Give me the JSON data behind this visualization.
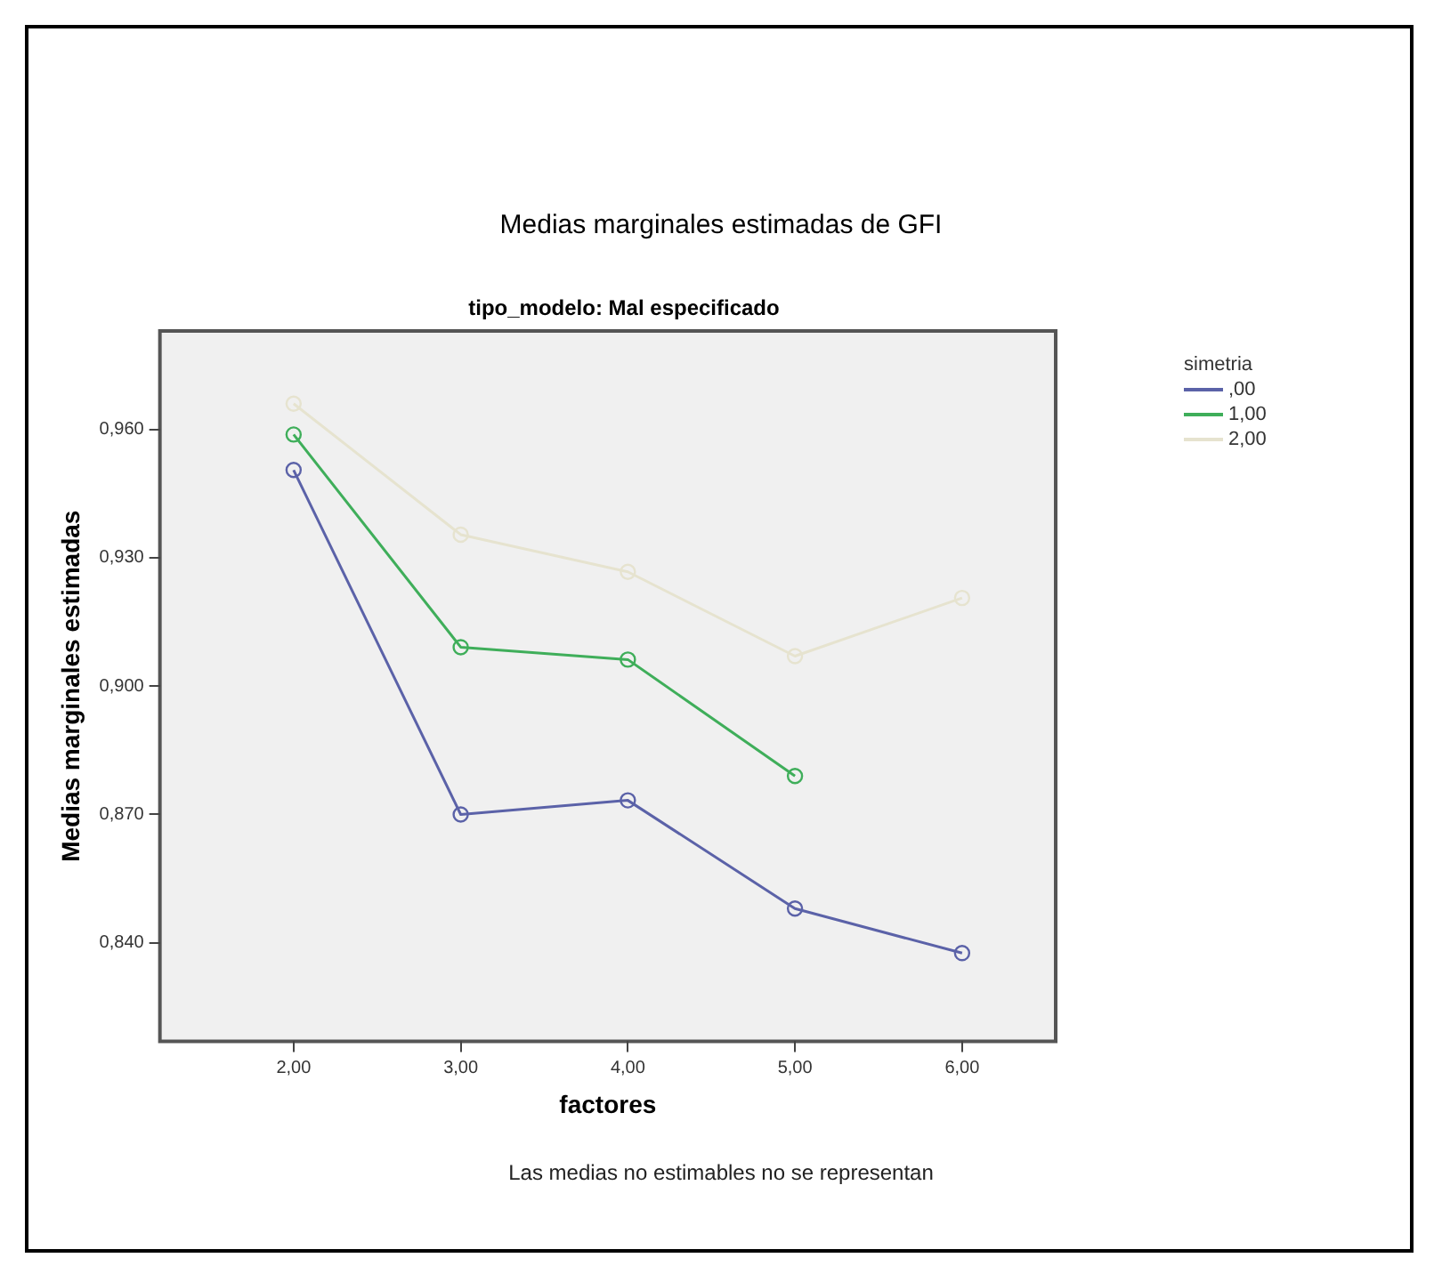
{
  "chart_data": {
    "type": "line",
    "title": "Medias marginales estimadas de GFI",
    "subtitle": "tipo_modelo: Mal especificado",
    "xlabel": "factores",
    "ylabel": "Medias marginales estimadas",
    "legend_title": "simetria",
    "annotations": [
      "Las medias no estimables no se representan"
    ],
    "x": [
      2,
      3,
      4,
      5,
      6
    ],
    "series": [
      {
        "name": ",00",
        "color": "#5b62a8",
        "values": [
          0.9505,
          0.87,
          0.8733,
          0.848,
          0.8376
        ]
      },
      {
        "name": "1,00",
        "color": "#3fae5a",
        "values": [
          0.9588,
          0.9091,
          0.9062,
          0.879,
          null
        ]
      },
      {
        "name": "2,00",
        "color": "#e6e3cf",
        "values": [
          0.966,
          0.9354,
          0.9267,
          0.907,
          0.9206
        ]
      }
    ],
    "xlim": [
      1.2,
      6.56
    ],
    "xticks": [
      {
        "value": 2,
        "label": "2,00"
      },
      {
        "value": 3,
        "label": "3,00"
      },
      {
        "value": 4,
        "label": "4,00"
      },
      {
        "value": 5,
        "label": "5,00"
      },
      {
        "value": 6,
        "label": "6,00"
      }
    ],
    "ylim": [
      0.817,
      0.983
    ],
    "yticks": [
      {
        "value": 0.84,
        "label": "0,840"
      },
      {
        "value": 0.87,
        "label": "0,870"
      },
      {
        "value": 0.9,
        "label": "0,900"
      },
      {
        "value": 0.93,
        "label": "0,930"
      },
      {
        "value": 0.96,
        "label": "0,960"
      }
    ],
    "grid": false,
    "legend": "top right",
    "marker": "circle",
    "line_style": "solid"
  }
}
